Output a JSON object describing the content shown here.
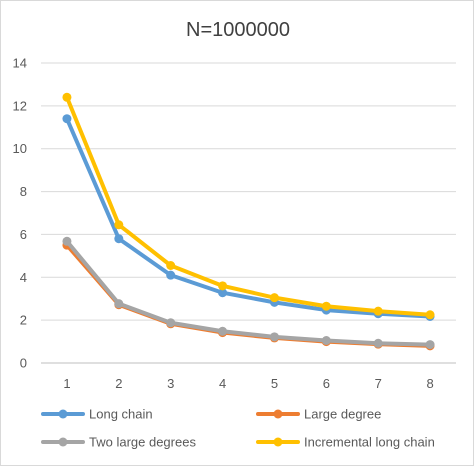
{
  "chart_data": {
    "type": "line",
    "title": "N=1000000",
    "xlabel": "",
    "ylabel": "",
    "x": [
      1,
      2,
      3,
      4,
      5,
      6,
      7,
      8
    ],
    "ylim": [
      0,
      14
    ],
    "yticks": [
      0,
      2,
      4,
      6,
      8,
      10,
      12,
      14
    ],
    "grid": "horizontal",
    "legend": "bottom",
    "series": [
      {
        "name": "Long chain",
        "color": "#5B9BD5",
        "values": [
          11.4,
          5.8,
          4.1,
          3.28,
          2.83,
          2.47,
          2.3,
          2.17
        ]
      },
      {
        "name": "Large degree",
        "color": "#ED7D31",
        "values": [
          5.5,
          2.72,
          1.83,
          1.42,
          1.17,
          1.0,
          0.88,
          0.8
        ]
      },
      {
        "name": "Two large degrees",
        "color": "#A5A5A5",
        "values": [
          5.68,
          2.77,
          1.88,
          1.48,
          1.22,
          1.05,
          0.92,
          0.86
        ]
      },
      {
        "name": "Incremental long chain",
        "color": "#FFC000",
        "values": [
          12.4,
          6.45,
          4.55,
          3.6,
          3.05,
          2.65,
          2.42,
          2.25
        ]
      }
    ]
  }
}
